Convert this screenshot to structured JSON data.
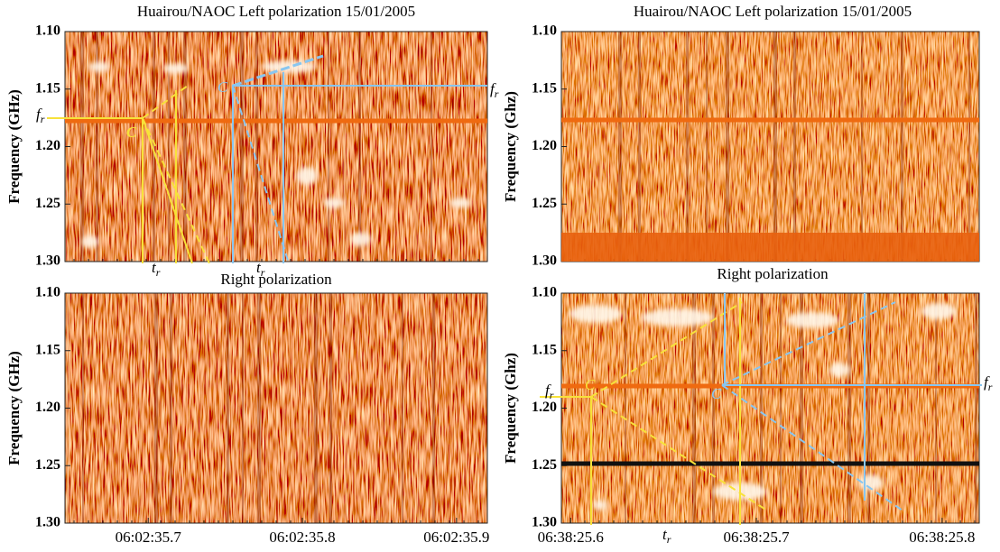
{
  "chart_data": [
    {
      "type": "spectrogram",
      "title": "Huairou/NAOC Left polarization  15/01/2005",
      "ylabel": "Frequency (GHz)",
      "ylim": [
        1.1,
        1.3
      ],
      "yticks": [
        {
          "value": 1.1,
          "label": "1.10"
        },
        1.15,
        {
          "value": 1.2,
          "label": "1.20"
        },
        1.25,
        {
          "value": 1.3,
          "label": "1.30"
        }
      ]
    },
    {
      "type": "spectrogram",
      "title": "Huairou/NAOC Left polarization  15/01/2005",
      "ylabel": "Frequency (Ghz)",
      "ylim": [
        1.1,
        1.3
      ],
      "yticks": [
        {
          "value": 1.1,
          "label": "1.10"
        },
        1.15,
        {
          "value": 1.2,
          "label": "1.20"
        },
        1.25,
        {
          "value": 1.3,
          "label": "1.30"
        }
      ]
    },
    {
      "type": "spectrogram",
      "title": "Right polarization",
      "ylabel": "Frequency (GHz)",
      "ylim": [
        1.1,
        1.3
      ],
      "yticks": [
        {
          "value": 1.1,
          "label": "1.10"
        },
        1.15,
        {
          "value": 1.2,
          "label": "1.20"
        },
        1.25,
        {
          "value": 1.3,
          "label": "1.30"
        }
      ],
      "xlim": [
        35.646,
        35.92
      ],
      "xticks": [
        {
          "value": 35.7,
          "label": "06:02:35.7"
        },
        {
          "value": 35.8,
          "label": "06:02:35.8"
        },
        {
          "value": 35.9,
          "label": "06:02:35.9"
        }
      ]
    },
    {
      "type": "spectrogram",
      "title": "Right polarization",
      "ylabel": "Frequency (Ghz)",
      "ylim": [
        1.1,
        1.3
      ],
      "yticks": [
        {
          "value": 1.1,
          "label": "1.10"
        },
        1.15,
        {
          "value": 1.2,
          "label": "1.20"
        },
        1.25,
        {
          "value": 1.3,
          "label": "1.30"
        }
      ],
      "xlim": [
        25.595,
        25.82
      ],
      "xticks": [
        {
          "value": 25.6,
          "label": "06:38:25.6"
        },
        {
          "value": 25.7,
          "label": "06:38:25.7"
        },
        {
          "value": 25.8,
          "label": "06:38:25.8"
        }
      ]
    }
  ],
  "annotations": {
    "c": "C",
    "f": "f",
    "t": "t",
    "sub": "r"
  }
}
